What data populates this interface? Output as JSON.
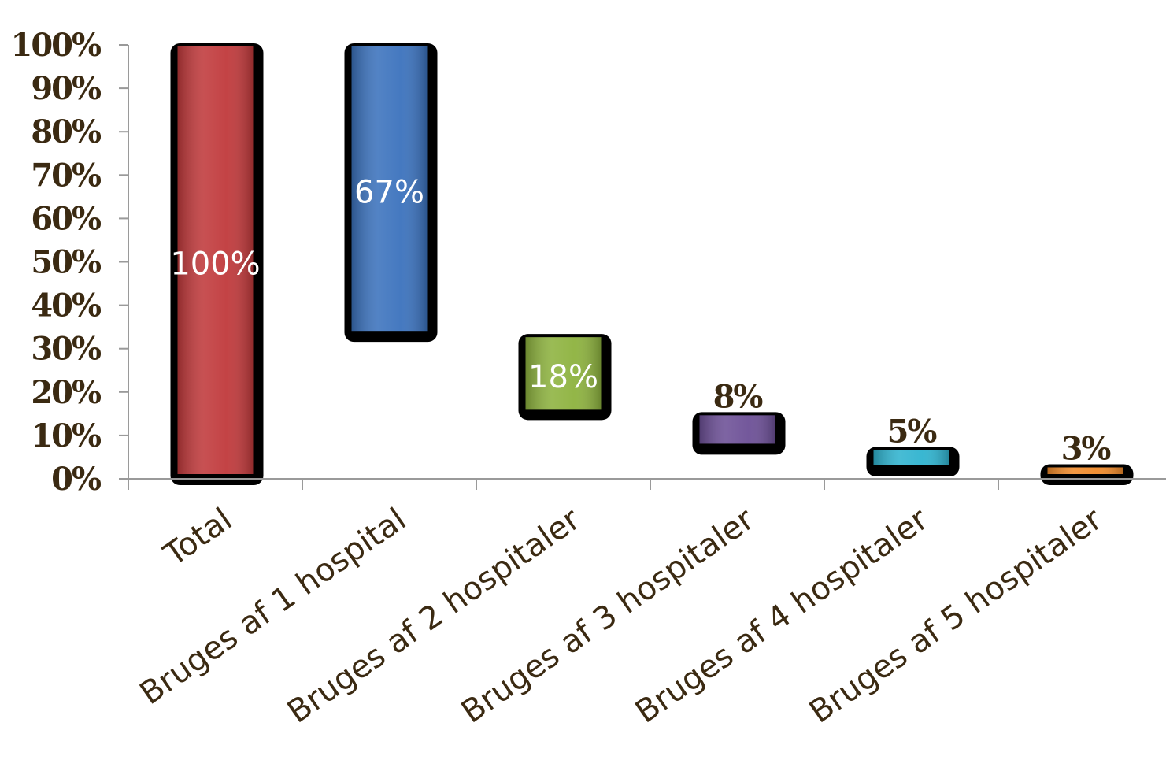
{
  "chart_data": {
    "type": "bar",
    "subtype": "waterfall",
    "categories": [
      "Total",
      "Bruges af 1 hospital",
      "Bruges af 2 hospitaler",
      "Bruges af 3 hospitaler",
      "Bruges af 4 hospitaler",
      "Bruges af 5 hospitaler"
    ],
    "values": [
      100,
      67,
      18,
      8,
      5,
      3
    ],
    "bases": [
      0,
      33,
      15,
      7,
      2,
      0
    ],
    "data_labels": [
      "100%",
      "67%",
      "18%",
      "8%",
      "5%",
      "3%"
    ],
    "colors": [
      "#c0393b",
      "#3b72bd",
      "#8db23e",
      "#6c4f96",
      "#2fb3cf",
      "#f08a2a"
    ],
    "yticks": [
      "0%",
      "10%",
      "20%",
      "30%",
      "40%",
      "50%",
      "60%",
      "70%",
      "80%",
      "90%",
      "100%"
    ],
    "ylim": [
      0,
      100
    ],
    "title": "",
    "xlabel": "",
    "ylabel": "",
    "grid": false,
    "legend": "none"
  }
}
